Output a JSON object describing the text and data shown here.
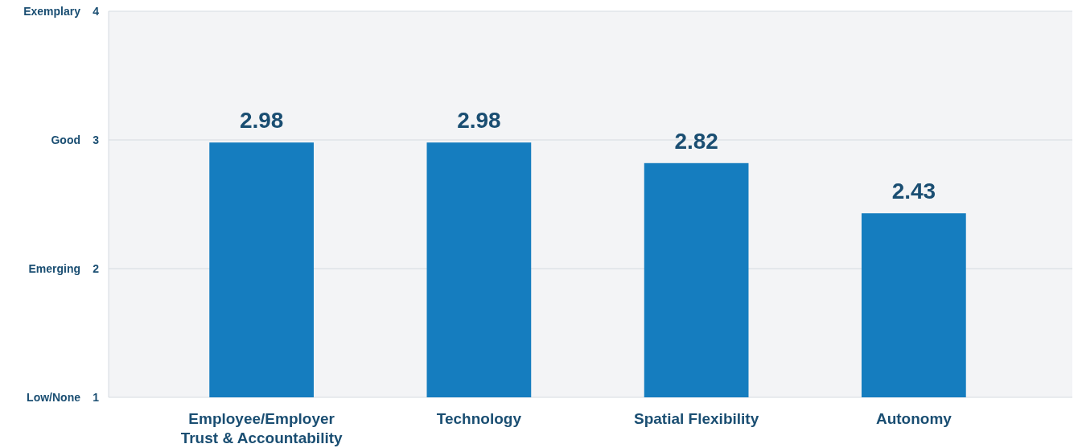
{
  "chart_data": {
    "type": "bar",
    "categories": [
      "Employee/Employer Trust & Accountability",
      "Technology",
      "Spatial Flexibility",
      "Autonomy"
    ],
    "values": [
      2.98,
      2.98,
      2.82,
      2.43
    ],
    "color": "#157dbf",
    "ylim": [
      1,
      4
    ],
    "yticks": [
      1,
      2,
      3,
      4
    ],
    "annotations": [
      "Low/None",
      "Emerging",
      "Good",
      "Exemplary"
    ],
    "grid": "y",
    "data_labels": true
  }
}
